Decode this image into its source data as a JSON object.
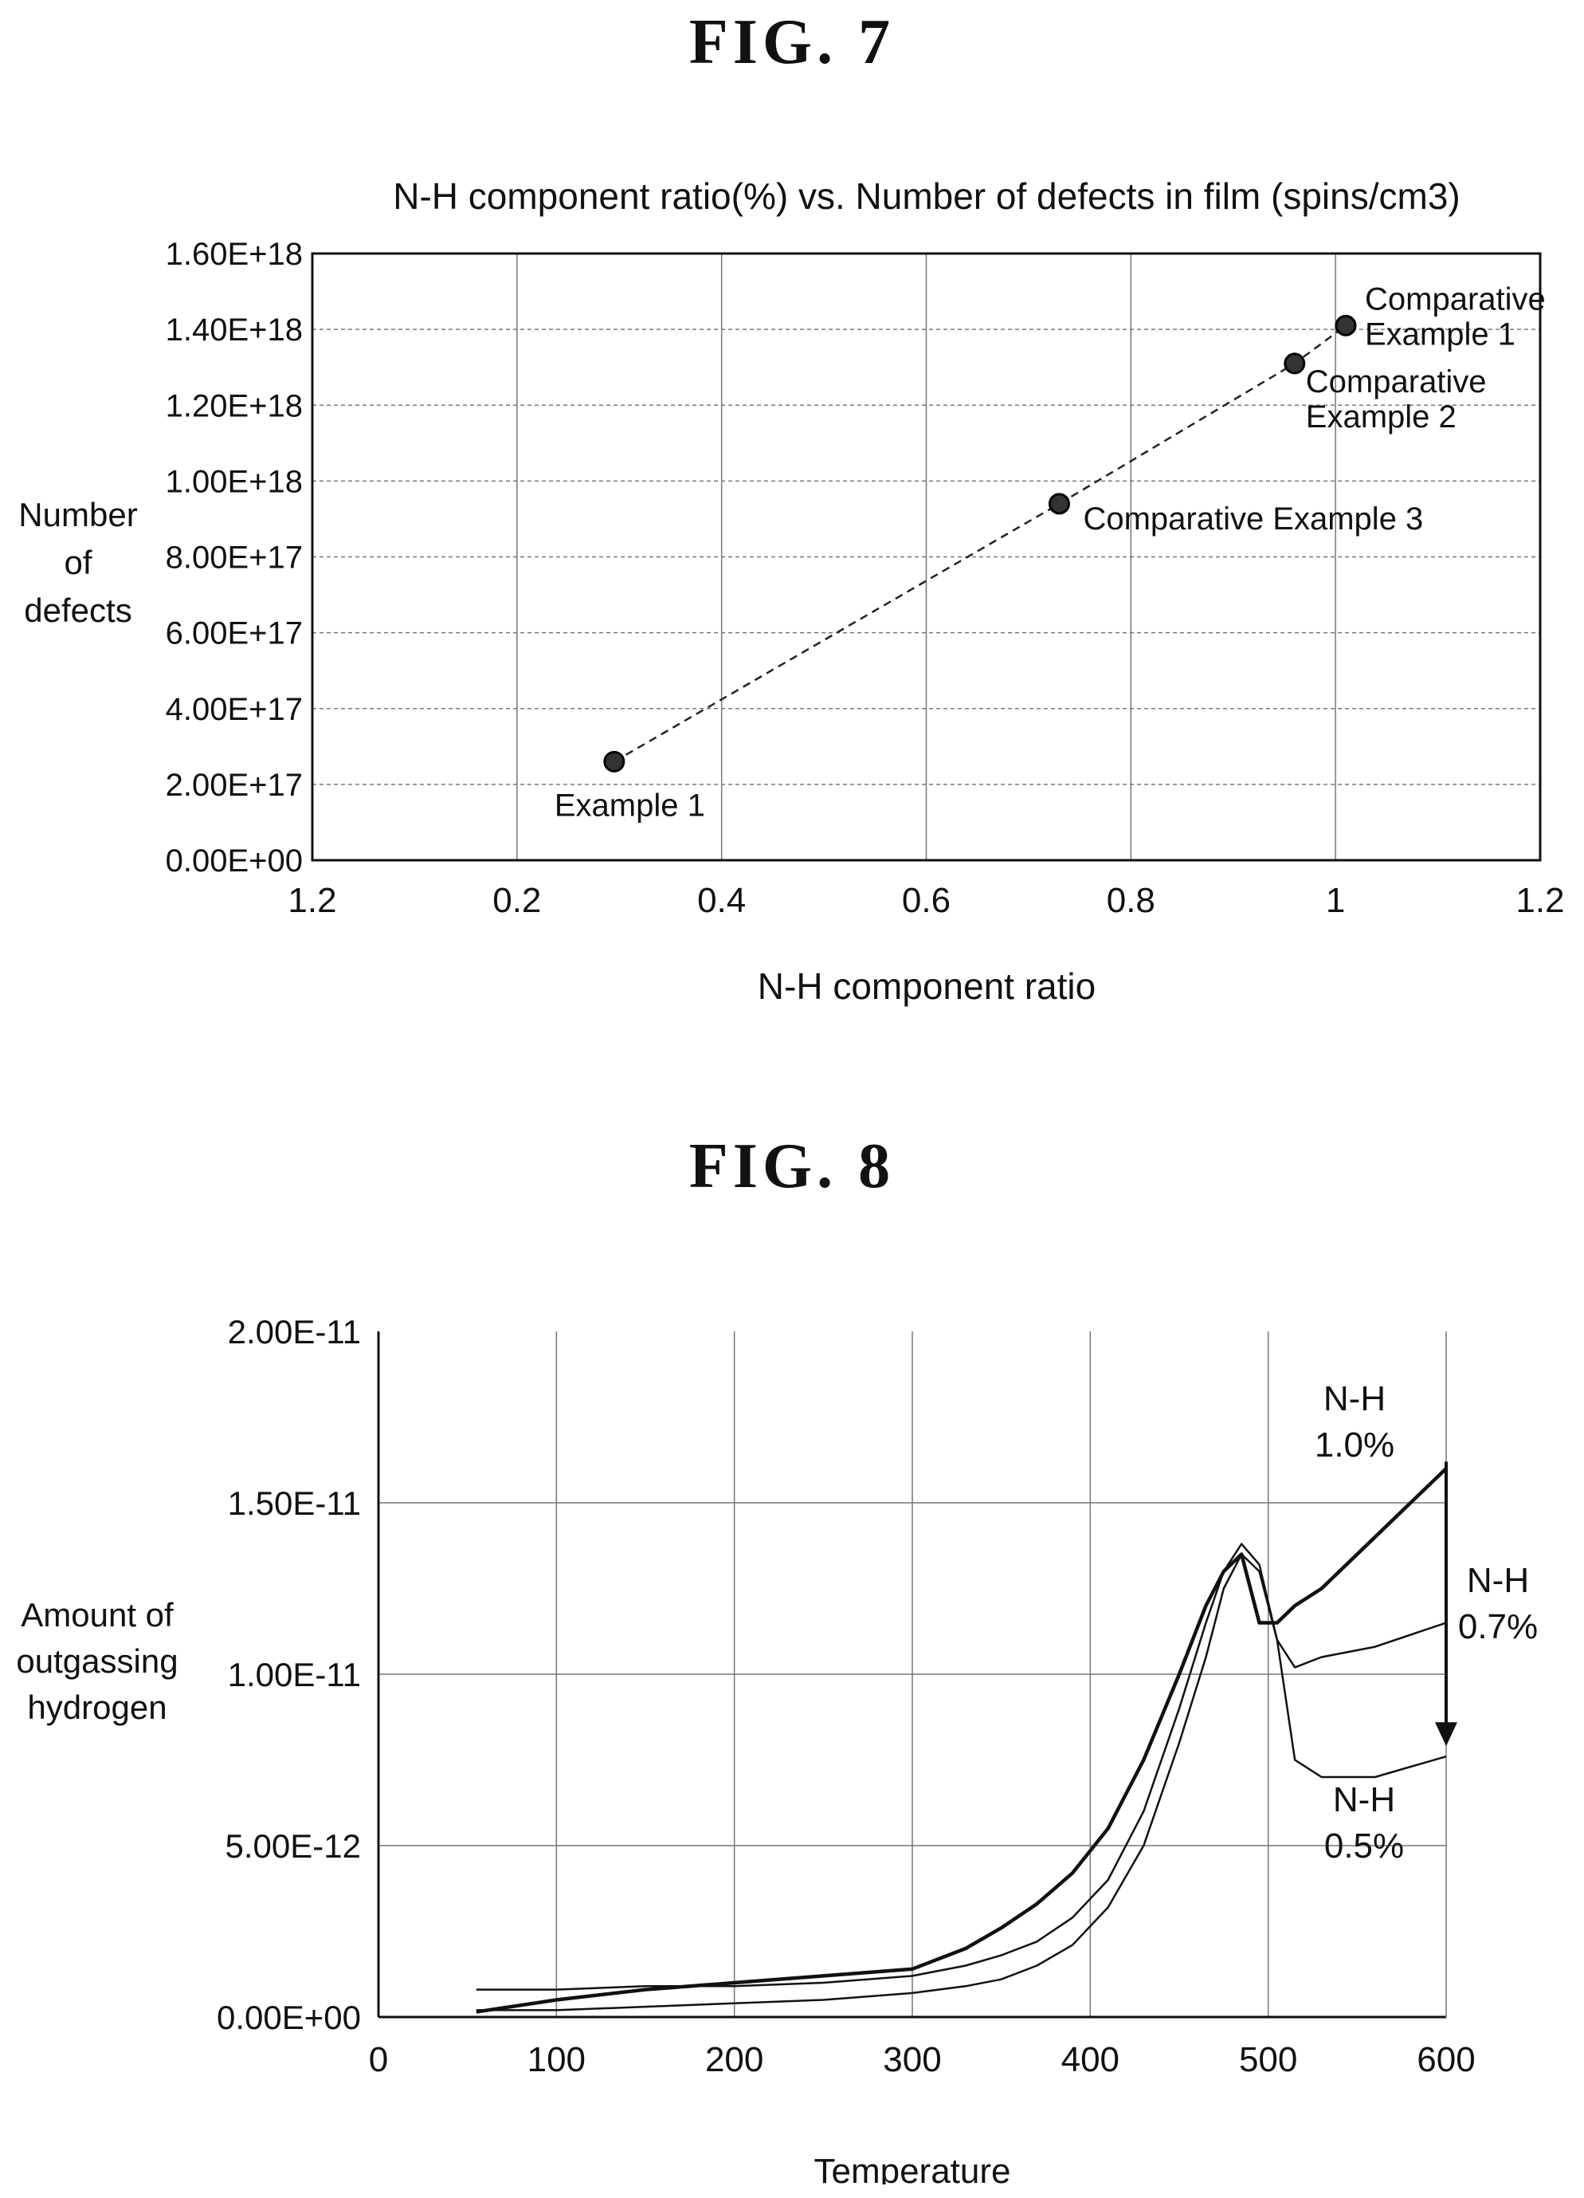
{
  "figures": [
    {
      "label": "FIG.  7"
    },
    {
      "label": "FIG.  8"
    }
  ],
  "chart_data": [
    {
      "type": "scatter",
      "title": "N-H component ratio(%) vs. Number of defects in film (spins/cm3)",
      "xlabel": "N-H component ratio",
      "ylabel": [
        "Number",
        "of",
        "defects"
      ],
      "x_tick_labels": [
        "1.2",
        "0.2",
        "0.4",
        "0.6",
        "0.8",
        "1",
        "1.2"
      ],
      "x_tick_values": [
        0.0,
        0.2,
        0.4,
        0.6,
        0.8,
        1.0,
        1.2
      ],
      "xlim": [
        0,
        1.2
      ],
      "y_tick_labels": [
        "0.00E+00",
        "2.00E+17",
        "4.00E+17",
        "6.00E+17",
        "8.00E+17",
        "1.00E+18",
        "1.20E+18",
        "1.40E+18",
        "1.60E+18"
      ],
      "y_tick_values": [
        0,
        2e+17,
        4e+17,
        6e+17,
        8e+17,
        1e+18,
        1.2e+18,
        1.4e+18,
        1.6e+18
      ],
      "ylim": [
        0,
        1.6e+18
      ],
      "grid": true,
      "line_style": "dashed",
      "points": [
        {
          "x": 0.295,
          "y": 2.6e+17,
          "label": [
            "Example 1"
          ]
        },
        {
          "x": 0.73,
          "y": 9.4e+17,
          "label": [
            "Comparative Example 3"
          ]
        },
        {
          "x": 0.96,
          "y": 1.31e+18,
          "label": [
            "Comparative",
            "Example 2"
          ]
        },
        {
          "x": 1.01,
          "y": 1.41e+18,
          "label": [
            "Comparative",
            "Example 1"
          ]
        }
      ]
    },
    {
      "type": "line",
      "xlabel": "Temperature",
      "ylabel": [
        "Amount of",
        "outgassing",
        "hydrogen"
      ],
      "x_tick_labels": [
        "0",
        "100",
        "200",
        "300",
        "400",
        "500",
        "600"
      ],
      "x_tick_values": [
        0,
        100,
        200,
        300,
        400,
        500,
        600
      ],
      "xlim": [
        0,
        600
      ],
      "y_tick_labels": [
        "0.00E+00",
        "5.00E-12",
        "1.00E-11",
        "1.50E-11",
        "2.00E-11"
      ],
      "y_tick_values": [
        0,
        5e-12,
        1e-11,
        1.5e-11,
        2e-11
      ],
      "ylim": [
        0,
        2e-11
      ],
      "grid": true,
      "x": [
        55,
        100,
        150,
        200,
        250,
        300,
        330,
        350,
        370,
        390,
        410,
        430,
        450,
        465,
        475,
        485,
        495,
        505,
        515,
        530,
        560,
        600
      ],
      "series": [
        {
          "label": [
            "N-H",
            "1.0%"
          ],
          "values": [
            1.5e-13,
            5e-13,
            8e-13,
            1e-12,
            1.2e-12,
            1.4e-12,
            2e-12,
            2.6e-12,
            3.3e-12,
            4.2e-12,
            5.5e-12,
            7.5e-12,
            1e-11,
            1.2e-11,
            1.3e-11,
            1.35e-11,
            1.15e-11,
            1.15e-11,
            1.2e-11,
            1.25e-11,
            1.4e-11,
            1.6e-11
          ]
        },
        {
          "label": [
            "N-H",
            "0.7%"
          ],
          "values": [
            8e-13,
            8e-13,
            9e-13,
            9e-13,
            1e-12,
            1.2e-12,
            1.5e-12,
            1.8e-12,
            2.2e-12,
            2.9e-12,
            4e-12,
            6e-12,
            9e-12,
            1.15e-11,
            1.3e-11,
            1.38e-11,
            1.32e-11,
            1.1e-11,
            1.02e-11,
            1.05e-11,
            1.08e-11,
            1.15e-11
          ]
        },
        {
          "label": [
            "N-H",
            "0.5%"
          ],
          "values": [
            2e-13,
            2e-13,
            3e-13,
            4e-13,
            5e-13,
            7e-13,
            9e-13,
            1.1e-12,
            1.5e-12,
            2.1e-12,
            3.2e-12,
            5e-12,
            8e-12,
            1.05e-11,
            1.25e-11,
            1.35e-11,
            1.3e-11,
            1.1e-11,
            7.5e-12,
            7e-12,
            7e-12,
            7.6e-12
          ]
        }
      ]
    }
  ]
}
